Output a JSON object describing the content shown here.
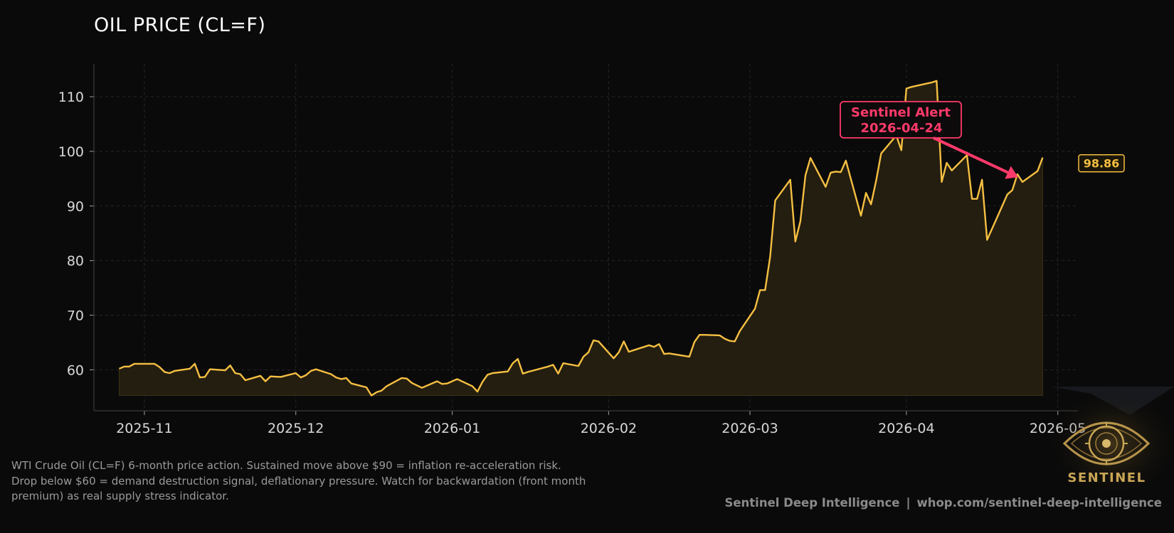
{
  "title": "OIL PRICE (CL=F)",
  "caption": [
    "WTI Crude Oil (CL=F) 6-month price action. Sustained move above $90 = inflation re-acceleration risk.",
    "Drop below $60 = demand destruction signal, deflationary pressure. Watch for backwardation (front month",
    "premium) as real supply stress indicator."
  ],
  "footer": {
    "left": "Sentinel Deep Intelligence",
    "sep": "|",
    "right": "whop.com/sentinel-deep-intelligence"
  },
  "logo": {
    "text": "SENTINEL",
    "icon": "eye-logo-icon"
  },
  "colors": {
    "line": "#f5bf42",
    "fill": "#262011",
    "alert": "#ff3a6a",
    "axis_text": "#d8d8d8",
    "grid": "#262626"
  },
  "chart_data": {
    "type": "area",
    "title": "OIL PRICE (CL=F)",
    "xlabel": "",
    "ylabel": "",
    "ylim": [
      52.5,
      116
    ],
    "yticks": [
      60,
      70,
      80,
      90,
      100,
      110
    ],
    "xlim": [
      "2025-10-22",
      "2026-05-05"
    ],
    "xticks": [
      "2025-11",
      "2025-12",
      "2026-01",
      "2026-02",
      "2026-03",
      "2026-04",
      "2026-05"
    ],
    "grid": true,
    "last_value_label": "98.86",
    "annotation": {
      "text": [
        "Sentinel Alert",
        "2026-04-24"
      ],
      "target_date": "2026-04-24",
      "target_value": 95.0
    },
    "series": [
      {
        "x": [
          "2025-10-27",
          "2025-10-28",
          "2025-10-29",
          "2025-10-30",
          "2025-10-31",
          "2025-11-03",
          "2025-11-04",
          "2025-11-05",
          "2025-11-06",
          "2025-11-07",
          "2025-11-10",
          "2025-11-11",
          "2025-11-12",
          "2025-11-13",
          "2025-11-14",
          "2025-11-17",
          "2025-11-18",
          "2025-11-19",
          "2025-11-20",
          "2025-11-21",
          "2025-11-24",
          "2025-11-25",
          "2025-11-26",
          "2025-11-28",
          "2025-12-01",
          "2025-12-02",
          "2025-12-03",
          "2025-12-04",
          "2025-12-05",
          "2025-12-08",
          "2025-12-09",
          "2025-12-10",
          "2025-12-11",
          "2025-12-12",
          "2025-12-15",
          "2025-12-16",
          "2025-12-17",
          "2025-12-18",
          "2025-12-19",
          "2025-12-22",
          "2025-12-23",
          "2025-12-24",
          "2025-12-26",
          "2025-12-29",
          "2025-12-30",
          "2025-12-31",
          "2026-01-02",
          "2026-01-05",
          "2026-01-06",
          "2026-01-07",
          "2026-01-08",
          "2026-01-09",
          "2026-01-12",
          "2026-01-13",
          "2026-01-14",
          "2026-01-15",
          "2026-01-16",
          "2026-01-20",
          "2026-01-21",
          "2026-01-22",
          "2026-01-23",
          "2026-01-26",
          "2026-01-27",
          "2026-01-28",
          "2026-01-29",
          "2026-01-30",
          "2026-02-02",
          "2026-02-03",
          "2026-02-04",
          "2026-02-05",
          "2026-02-06",
          "2026-02-09",
          "2026-02-10",
          "2026-02-11",
          "2026-02-12",
          "2026-02-13",
          "2026-02-17",
          "2026-02-18",
          "2026-02-19",
          "2026-02-20",
          "2026-02-23",
          "2026-02-24",
          "2026-02-25",
          "2026-02-26",
          "2026-02-27",
          "2026-03-02",
          "2026-03-03",
          "2026-03-04",
          "2026-03-05",
          "2026-03-06",
          "2026-03-09",
          "2026-03-10",
          "2026-03-11",
          "2026-03-12",
          "2026-03-13",
          "2026-03-16",
          "2026-03-17",
          "2026-03-18",
          "2026-03-19",
          "2026-03-20",
          "2026-03-23",
          "2026-03-24",
          "2026-03-25",
          "2026-03-26",
          "2026-03-27",
          "2026-03-30",
          "2026-03-31",
          "2026-04-01",
          "2026-04-02",
          "2026-04-06",
          "2026-04-07",
          "2026-04-08",
          "2026-04-09",
          "2026-04-10",
          "2026-04-13",
          "2026-04-14",
          "2026-04-15",
          "2026-04-16",
          "2026-04-17",
          "2026-04-20",
          "2026-04-21",
          "2026-04-22",
          "2026-04-23",
          "2026-04-24",
          "2026-04-27",
          "2026-04-28"
        ],
        "values": [
          60.2,
          60.6,
          60.6,
          61.1,
          61.1,
          61.1,
          60.5,
          59.6,
          59.4,
          59.8,
          60.2,
          61.1,
          58.6,
          58.7,
          60.1,
          59.9,
          60.8,
          59.4,
          59.2,
          58.1,
          58.9,
          57.9,
          58.8,
          58.7,
          59.4,
          58.6,
          59.0,
          59.8,
          60.1,
          59.2,
          58.6,
          58.3,
          58.5,
          57.5,
          56.8,
          55.3,
          55.9,
          56.2,
          57.0,
          58.5,
          58.4,
          57.6,
          56.7,
          57.9,
          57.4,
          57.5,
          58.3,
          57.0,
          56.0,
          57.8,
          59.1,
          59.4,
          59.7,
          61.2,
          62.0,
          59.3,
          59.6,
          60.6,
          60.9,
          59.3,
          61.2,
          60.7,
          62.4,
          63.2,
          65.4,
          65.2,
          62.1,
          63.2,
          65.2,
          63.3,
          63.6,
          64.5,
          64.2,
          64.7,
          62.9,
          63.0,
          62.4,
          65.1,
          66.4,
          66.4,
          66.3,
          65.7,
          65.3,
          65.2,
          67.1,
          71.2,
          74.6,
          74.6,
          80.7,
          91.0,
          94.8,
          83.5,
          87.2,
          95.6,
          98.8,
          93.5,
          96.1,
          96.3,
          96.2,
          98.3,
          88.2,
          92.4,
          90.3,
          94.6,
          99.6,
          102.9,
          100.2,
          111.5,
          111.8,
          112.6,
          112.9,
          94.4,
          97.9,
          96.5,
          99.3,
          91.3,
          91.3,
          94.8,
          83.8,
          90.0,
          92.1,
          92.9,
          95.8,
          94.4,
          96.4,
          98.86
        ]
      }
    ]
  }
}
